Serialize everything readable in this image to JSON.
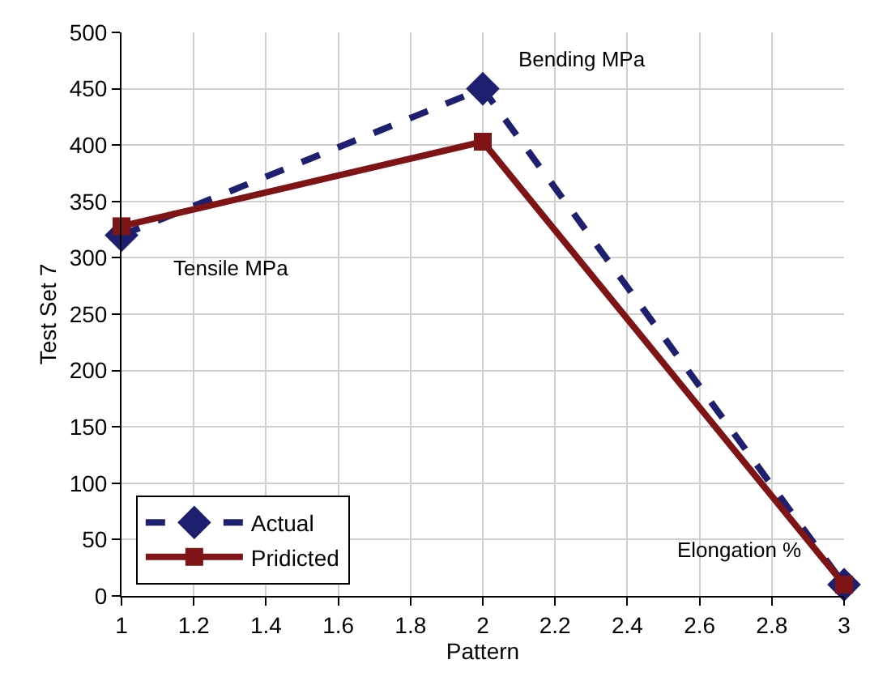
{
  "chart_data": {
    "type": "line",
    "xlabel": "Pattern",
    "ylabel": "Test Set 7",
    "x": [
      1,
      2,
      3
    ],
    "series": [
      {
        "name": "Actual",
        "color": "#1f1f6f",
        "values": [
          320,
          450,
          10
        ],
        "marker": "diamond",
        "line_style": "dashed"
      },
      {
        "name": "Pridicted",
        "color": "#7f1416",
        "values": [
          328,
          403,
          10
        ],
        "marker": "square",
        "line_style": "solid"
      }
    ],
    "xlim": [
      1,
      3
    ],
    "xticks": [
      1,
      1.2,
      1.4,
      1.6,
      1.8,
      2,
      2.2,
      2.4,
      2.6,
      2.8,
      3
    ],
    "ylim": [
      0,
      500
    ],
    "yticks": [
      0,
      50,
      100,
      150,
      200,
      250,
      300,
      350,
      400,
      450,
      500
    ],
    "grid": true,
    "legend": "bottom left",
    "annotations": [
      {
        "text": "Tensile MPa",
        "x": 1,
        "y": 320
      },
      {
        "text": "Bending MPa",
        "x": 2,
        "y": 450
      },
      {
        "text": "Elongation %",
        "x": 3,
        "y": 10
      }
    ]
  }
}
